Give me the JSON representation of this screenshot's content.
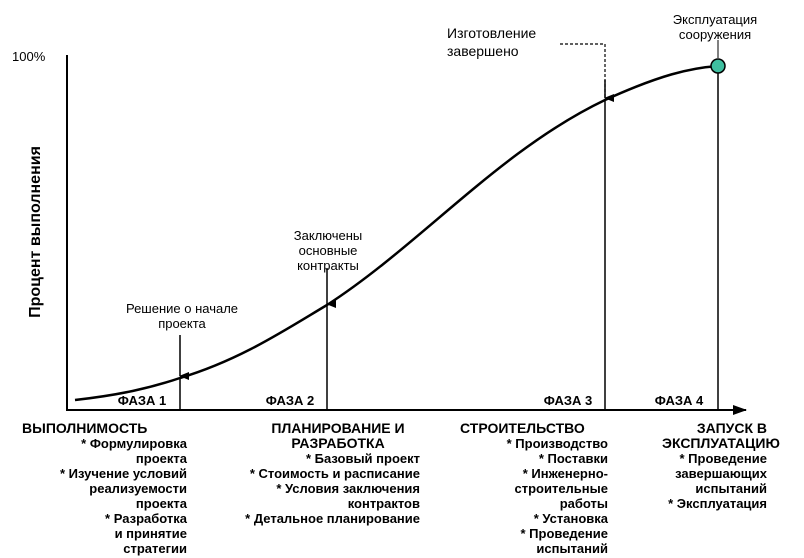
{
  "y_axis": {
    "label": "Процент выполнения",
    "top_label": "100%"
  },
  "milestones": [
    {
      "label": "Решение о начале проекта"
    },
    {
      "label": "Заключены основные контракты"
    },
    {
      "label": "Изготовление завершено"
    },
    {
      "label": "Эксплуатация сооружения"
    }
  ],
  "phases": [
    {
      "label": "ФАЗА 1",
      "heading": "ВЫПОЛНИМОСТЬ",
      "items": [
        "* Формулировка проекта",
        "* Изучение условий реализуемости проекта",
        "* Разработка и принятие стратегии"
      ]
    },
    {
      "label": "ФАЗА 2",
      "heading": "ПЛАНИРОВАНИЕ И РАЗРАБОТКА",
      "items": [
        "* Базовый проект",
        "* Стоимость и расписание",
        "* Условия заключения контрактов",
        "* Детальное планирование"
      ]
    },
    {
      "label": "ФАЗА 3",
      "heading": "СТРОИТЕЛЬСТВО",
      "items": [
        "* Производство",
        "* Поставки",
        "* Инженерно-строительные работы",
        "* Установка",
        "* Проведение испытаний"
      ]
    },
    {
      "label": "ФАЗА 4",
      "heading": "ЗАПУСК В ЭКСПЛУАТАЦИЮ",
      "items": [
        "* Проведение завершающих испытаний",
        "* Эксплуатация"
      ]
    }
  ]
}
